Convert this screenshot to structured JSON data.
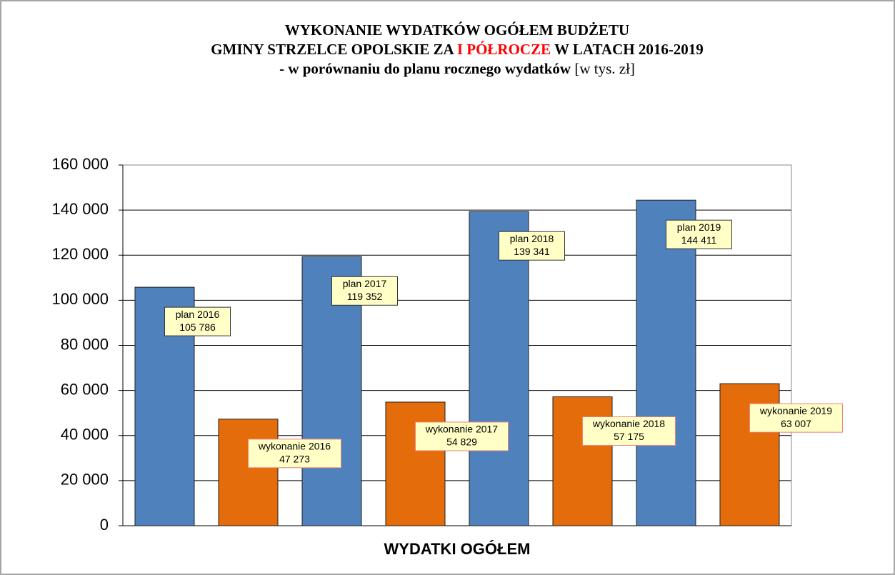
{
  "chart_data": {
    "type": "bar",
    "title_lines": [
      [
        {
          "text": "WYKONANIE WYDATKÓW OGÓŁEM BUDŻETU",
          "color": "#000000",
          "bold": true
        }
      ],
      [
        {
          "text": "GMINY STRZELCE OPOLSKIE ZA ",
          "color": "#000000",
          "bold": true
        },
        {
          "text": "I PÓŁROCZE",
          "color": "#ff0000",
          "bold": true
        },
        {
          "text": " W LATACH 2016-2019",
          "color": "#000000",
          "bold": true
        }
      ],
      [
        {
          "text": "- w porównaniu do planu rocznego wydatków",
          "color": "#000000",
          "bold": true
        },
        {
          "text": " [w tys. zł]",
          "color": "#000000",
          "bold": false
        }
      ]
    ],
    "x_label": "WYDATKI OGÓŁEM",
    "categories": [
      "plan 2016",
      "wykonanie 2016",
      "plan 2017",
      "wykonanie 2017",
      "plan 2018",
      "wykonanie 2018",
      "plan 2019",
      "wykonanie 2019"
    ],
    "values": [
      105786,
      47273,
      119352,
      54829,
      139341,
      57175,
      144411,
      63007
    ],
    "value_labels": [
      "105 786",
      "47 273",
      "119 352",
      "54 829",
      "139 341",
      "57 175",
      "144 411",
      "63 007"
    ],
    "colors": [
      "#4f81bd",
      "#e46c0a",
      "#4f81bd",
      "#e46c0a",
      "#4f81bd",
      "#e46c0a",
      "#4f81bd",
      "#e46c0a"
    ],
    "ylim": [
      0,
      160000
    ],
    "yticks": [
      0,
      {
        "value": 20000,
        "label": "20 000"
      },
      {
        "value": 40000,
        "label": "40 000"
      },
      {
        "value": 60000,
        "label": "60 000"
      },
      {
        "value": 80000,
        "label": "80 000"
      },
      {
        "value": 100000,
        "label": "100 000"
      },
      {
        "value": 120000,
        "label": "120 000"
      },
      {
        "value": 140000,
        "label": "140 000"
      },
      {
        "value": 160000,
        "label": "160 000"
      }
    ],
    "grid": true
  }
}
